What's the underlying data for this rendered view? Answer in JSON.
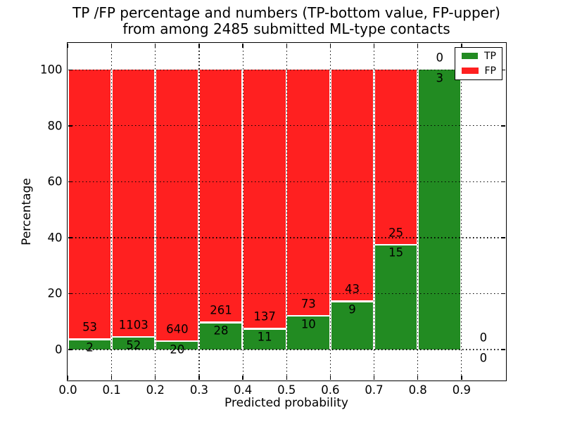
{
  "figure": {
    "title_line1": "TP /FP percentage and numbers (TP-bottom value, FP-upper)",
    "title_line2": "from among 2485 submitted ML-type contacts"
  },
  "chart_data": {
    "type": "bar",
    "stacked": true,
    "normalized": "each bar scaled to 100%, green TP share on bottom, red FP share on top",
    "title": "TP /FP percentage and numbers (TP-bottom value, FP-upper) from among 2485 submitted ML-type contacts",
    "xlabel": "Predicted probability",
    "ylabel": "Percentage",
    "xlim": [
      0.0,
      1.0
    ],
    "ylim": [
      -10.8,
      109.5
    ],
    "x_tick_labels": [
      "0.0",
      "0.1",
      "0.2",
      "0.3",
      "0.4",
      "0.5",
      "0.6",
      "0.7",
      "0.8",
      "0.9"
    ],
    "x_tick_values": [
      0.0,
      0.1,
      0.2,
      0.3,
      0.4,
      0.5,
      0.6,
      0.7,
      0.8,
      0.9
    ],
    "y_ticks": [
      0,
      20,
      40,
      60,
      80,
      100
    ],
    "grid": "dotted, on both axes, drawn over bars",
    "legend_position": "upper right",
    "categories": [
      "0.0-0.1",
      "0.1-0.2",
      "0.2-0.3",
      "0.3-0.4",
      "0.4-0.5",
      "0.5-0.6",
      "0.6-0.7",
      "0.7-0.8",
      "0.8-0.9",
      "0.9-1.0"
    ],
    "bin_width": 0.1,
    "series": [
      {
        "name": "TP",
        "color": "#228B22",
        "values": [
          2,
          52,
          20,
          28,
          11,
          10,
          9,
          15,
          3,
          0
        ]
      },
      {
        "name": "FP",
        "color": "#FF2020",
        "values": [
          53,
          1103,
          640,
          261,
          137,
          73,
          43,
          25,
          0,
          0
        ]
      }
    ],
    "annotations_note": "FP count printed just above the TP/FP boundary, TP count just below it, at each bin center",
    "legend": {
      "entries": [
        {
          "label": "TP",
          "color": "#228B22"
        },
        {
          "label": "FP",
          "color": "#FF2020"
        }
      ]
    },
    "total_contacts": 2485
  }
}
